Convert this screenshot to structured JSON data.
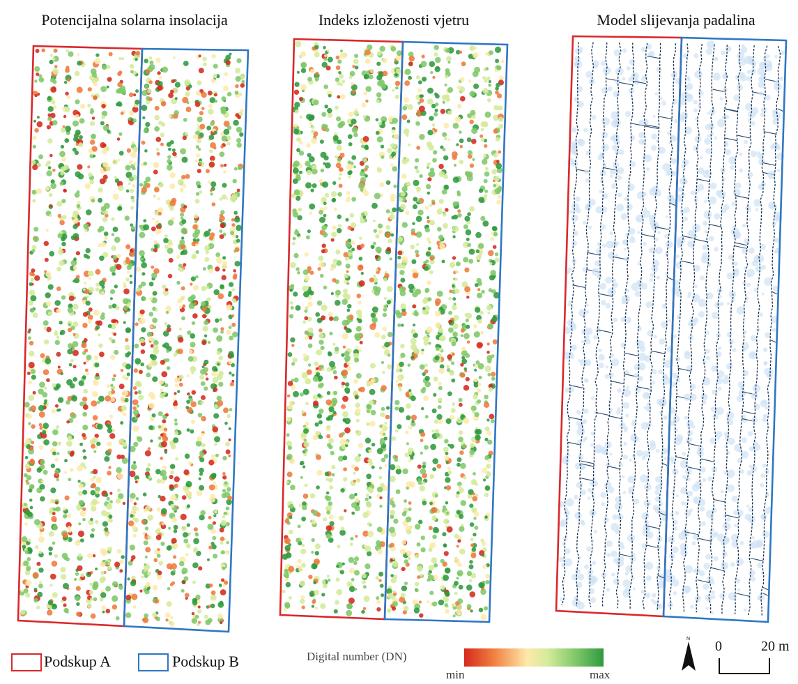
{
  "panels": [
    {
      "title": "Potencijalna solarna insolacija",
      "palette": "insolation"
    },
    {
      "title": "Indeks izloženosti vjetru",
      "palette": "wind"
    },
    {
      "title": "Model slijevanja padalina",
      "palette": "flow"
    }
  ],
  "legend": {
    "subset_a": {
      "label": "Podskup A",
      "color": "#d9282b"
    },
    "subset_b": {
      "label": "Podskup B",
      "color": "#2e77c2"
    },
    "dn_title": "Digital number (DN)",
    "dn_min": "min",
    "dn_max": "max",
    "ramp_colors": [
      "#d42a1e",
      "#ef7a3d",
      "#fde9a8",
      "#d4eb9a",
      "#7fc86a",
      "#2f9a3e"
    ]
  },
  "north_arrow": {
    "icon": "north-arrow-icon"
  },
  "scale_bar": {
    "start": "0",
    "end": "20 m"
  }
}
